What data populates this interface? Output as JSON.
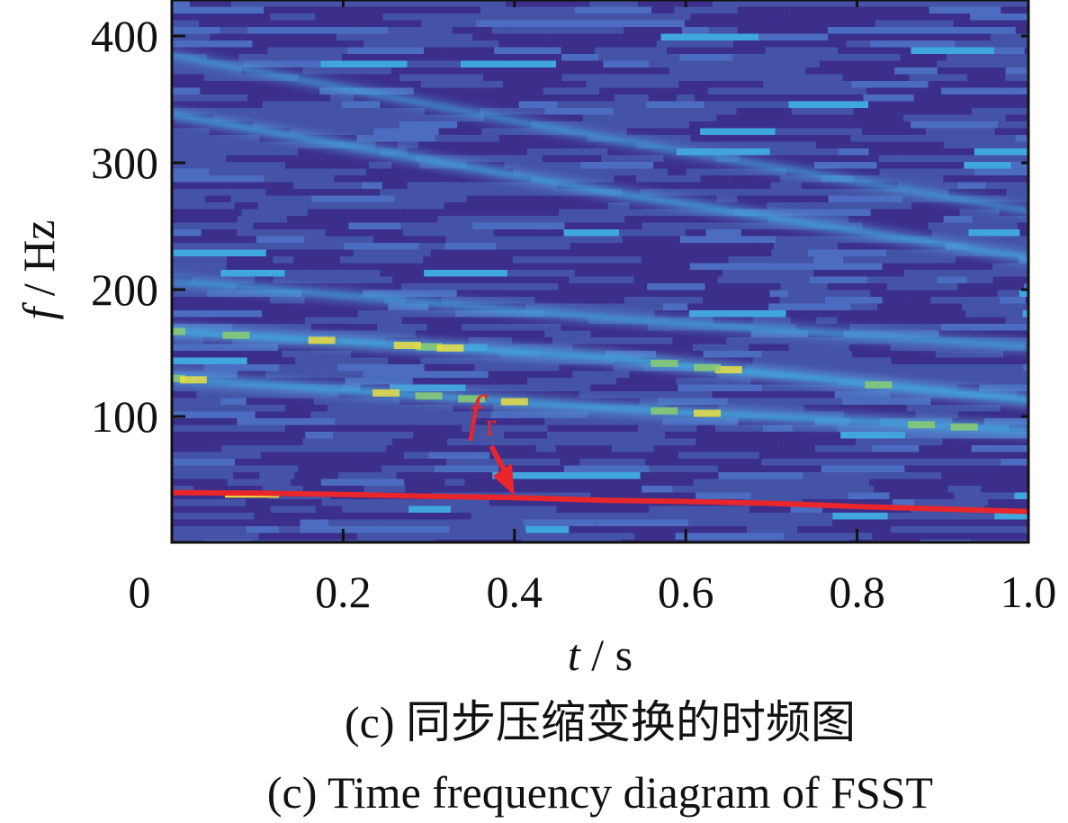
{
  "chart_data": {
    "type": "heatmap",
    "title": "",
    "xlabel": {
      "var": "t",
      "unit": " / s"
    },
    "ylabel": {
      "var": "f",
      "unit": " / Hz"
    },
    "xlim": [
      0,
      1.0
    ],
    "ylim": [
      0,
      428
    ],
    "x_ticks": [
      0,
      0.2,
      0.4,
      0.6,
      0.8,
      1.0
    ],
    "x_tick_labels": [
      "0",
      "0.2",
      "0.4",
      "0.6",
      "0.8",
      "1.0"
    ],
    "y_ticks": [
      100,
      200,
      300,
      400
    ],
    "y_tick_labels": [
      "100",
      "200",
      "300",
      "400"
    ],
    "colormap": [
      "#3b2f8a",
      "#4453a6",
      "#4b6cc0",
      "#3fa7dd",
      "#37c2c4",
      "#8ed06a",
      "#f5e23a"
    ],
    "ridges": [
      {
        "name": "ridge-1",
        "t": [
          0,
          0.5,
          1.0
        ],
        "f": [
          130,
          107,
          89
        ],
        "intensity": 0.75
      },
      {
        "name": "ridge-2",
        "t": [
          0,
          0.5,
          1.0
        ],
        "f": [
          167,
          147,
          113
        ],
        "intensity": 0.9
      },
      {
        "name": "ridge-3",
        "t": [
          0,
          0.5,
          1.0
        ],
        "f": [
          207,
          178,
          155
        ],
        "intensity": 0.5
      },
      {
        "name": "ridge-4",
        "t": [
          0,
          0.5,
          1.0
        ],
        "f": [
          338,
          278,
          225
        ],
        "intensity": 0.6
      },
      {
        "name": "ridge-5",
        "t": [
          0,
          0.5,
          1.0
        ],
        "f": [
          385,
          320,
          262
        ],
        "intensity": 0.4
      }
    ],
    "fr_curve": {
      "name": "fr",
      "t": [
        0,
        0.1,
        0.2,
        0.3,
        0.4,
        0.5,
        0.6,
        0.7,
        0.8,
        0.9,
        1.0
      ],
      "f": [
        40,
        39.5,
        38.5,
        37,
        36,
        34,
        33,
        31.5,
        29,
        27,
        25
      ],
      "color": "#e8262b"
    },
    "annotation": {
      "label_main": "f",
      "label_sub": "r",
      "arrow_to_t": 0.4,
      "arrow_to_f": 36,
      "color": "#e8262b"
    }
  },
  "captions": {
    "zh": "(c)  同步压缩变换的时频图",
    "en": "(c)  Time frequency diagram of FSST"
  }
}
